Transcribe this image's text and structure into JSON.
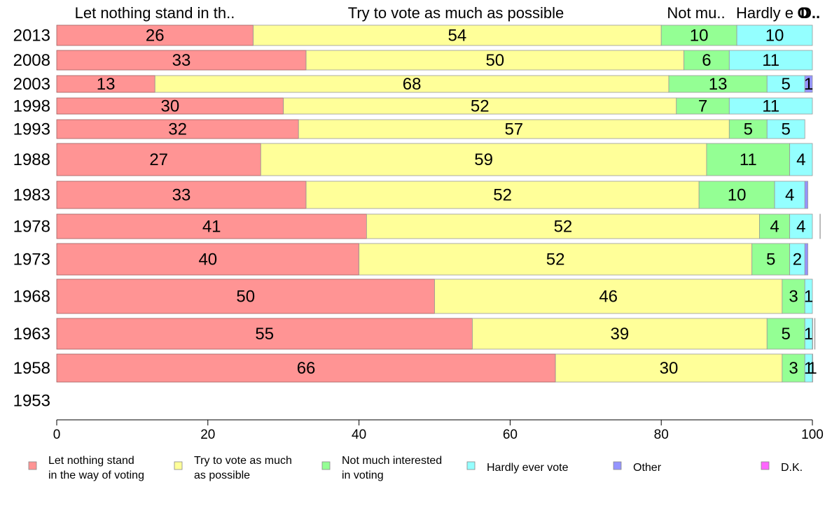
{
  "chart_data": {
    "type": "bar",
    "orientation": "horizontal",
    "stacked": true,
    "categories": [
      "2013",
      "2008",
      "2003",
      "1998",
      "1993",
      "1988",
      "1983",
      "1978",
      "1973",
      "1968",
      "1963",
      "1958",
      "1953"
    ],
    "xlim": [
      0,
      100
    ],
    "xticks": [
      "0",
      "20",
      "40",
      "60",
      "80",
      "100"
    ],
    "grid": false,
    "legend_position": "bottom",
    "column_headers": [
      {
        "text": "Let nothing stand in th..",
        "series": 0
      },
      {
        "text": "Try to vote as much as possible",
        "series": 1
      },
      {
        "text": "Not mu..",
        "series": 2
      },
      {
        "text": "Hardly e",
        "series": 3
      },
      {
        "text": "Other",
        "series": 4,
        "shown_as": "O"
      },
      {
        "text": "D..",
        "series": 5
      }
    ],
    "series": [
      {
        "name": "Let nothing stand in the way of voting",
        "legend_lines": [
          "Let nothing stand",
          "in the way of voting"
        ],
        "color": "#ff9494",
        "values": [
          26,
          33,
          13,
          30,
          32,
          27,
          33,
          41,
          40,
          50,
          55,
          66,
          null
        ]
      },
      {
        "name": "Try to vote as much as possible",
        "legend_lines": [
          "Try to vote as much",
          "as possible"
        ],
        "color": "#ffff99",
        "values": [
          54,
          50,
          68,
          52,
          57,
          59,
          52,
          52,
          52,
          46,
          39,
          30,
          null
        ]
      },
      {
        "name": "Not much interested in voting",
        "legend_lines": [
          "Not much interested",
          "in voting"
        ],
        "color": "#94ff94",
        "values": [
          10,
          6,
          13,
          7,
          5,
          11,
          10,
          4,
          5,
          3,
          5,
          3,
          null
        ]
      },
      {
        "name": "Hardly ever vote",
        "legend_lines": [
          "Hardly ever vote"
        ],
        "color": "#94ffff",
        "values": [
          10,
          11,
          5,
          11,
          5,
          4,
          4,
          4,
          2,
          1,
          1,
          1,
          null
        ]
      },
      {
        "name": "Other",
        "legend_lines": [
          "Other"
        ],
        "color": "#9494ff",
        "values": [
          0,
          0,
          1,
          0,
          0,
          0,
          0.4,
          0,
          0.4,
          0,
          0.3,
          1,
          null
        ]
      },
      {
        "name": "D.K.",
        "legend_lines": [
          "D.K."
        ],
        "color": "#ff66ff",
        "values": [
          0,
          0,
          0,
          0,
          0,
          0,
          0,
          0.6,
          0,
          0,
          0.6,
          0,
          null
        ]
      }
    ]
  }
}
